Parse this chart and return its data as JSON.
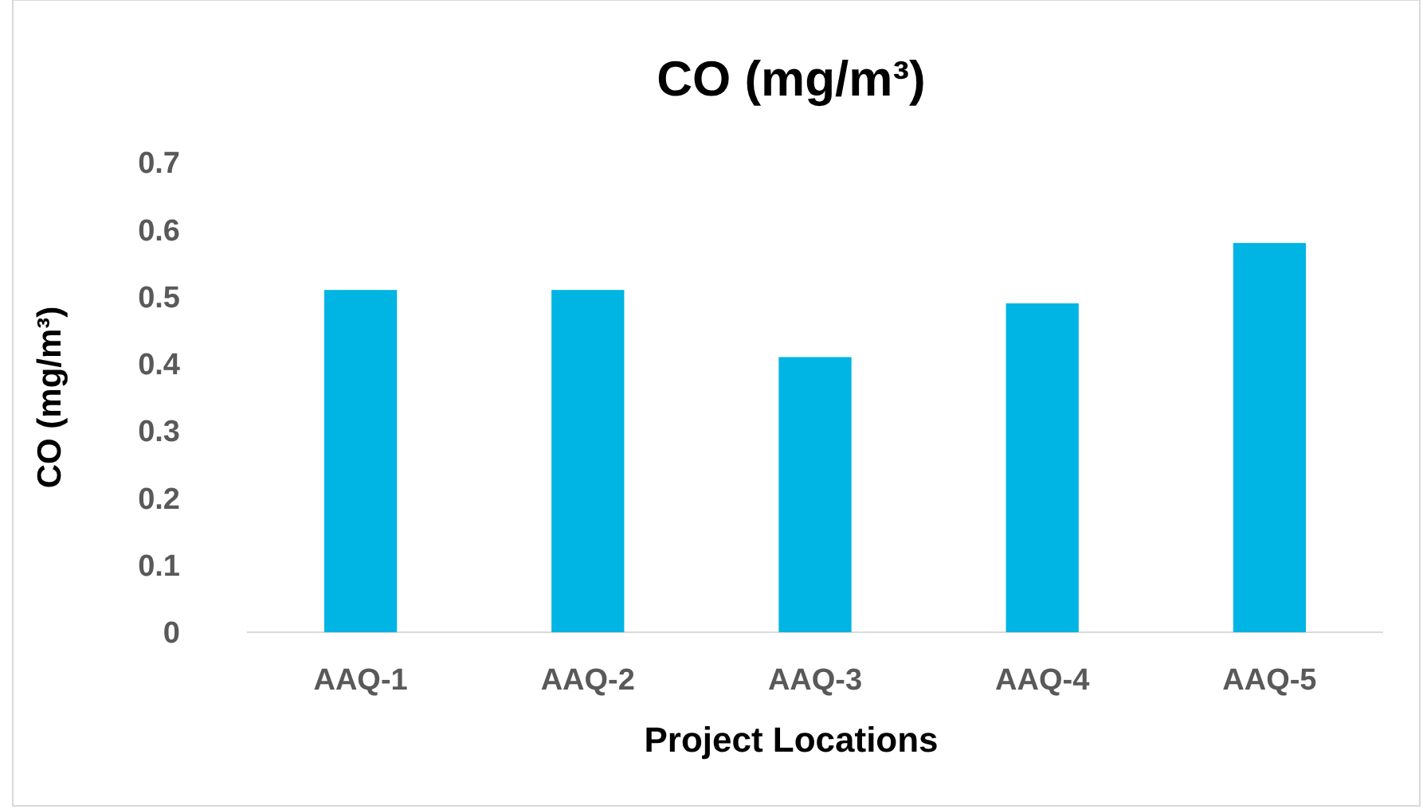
{
  "chart_data": {
    "type": "bar",
    "title": "CO (mg/m³)",
    "xlabel": "Project Locations",
    "ylabel": "CO (mg/m³)",
    "categories": [
      "AAQ-1",
      "AAQ-2",
      "AAQ-3",
      "AAQ-4",
      "AAQ-5"
    ],
    "values": [
      0.51,
      0.51,
      0.41,
      0.49,
      0.58
    ],
    "color": "#00b4e4",
    "ylim": [
      0,
      0.7
    ],
    "yticks": [
      {
        "value": 0,
        "label": "0"
      },
      0.1,
      0.2,
      0.3,
      0.4,
      0.5,
      0.6,
      0.7
    ],
    "grid": false
  }
}
